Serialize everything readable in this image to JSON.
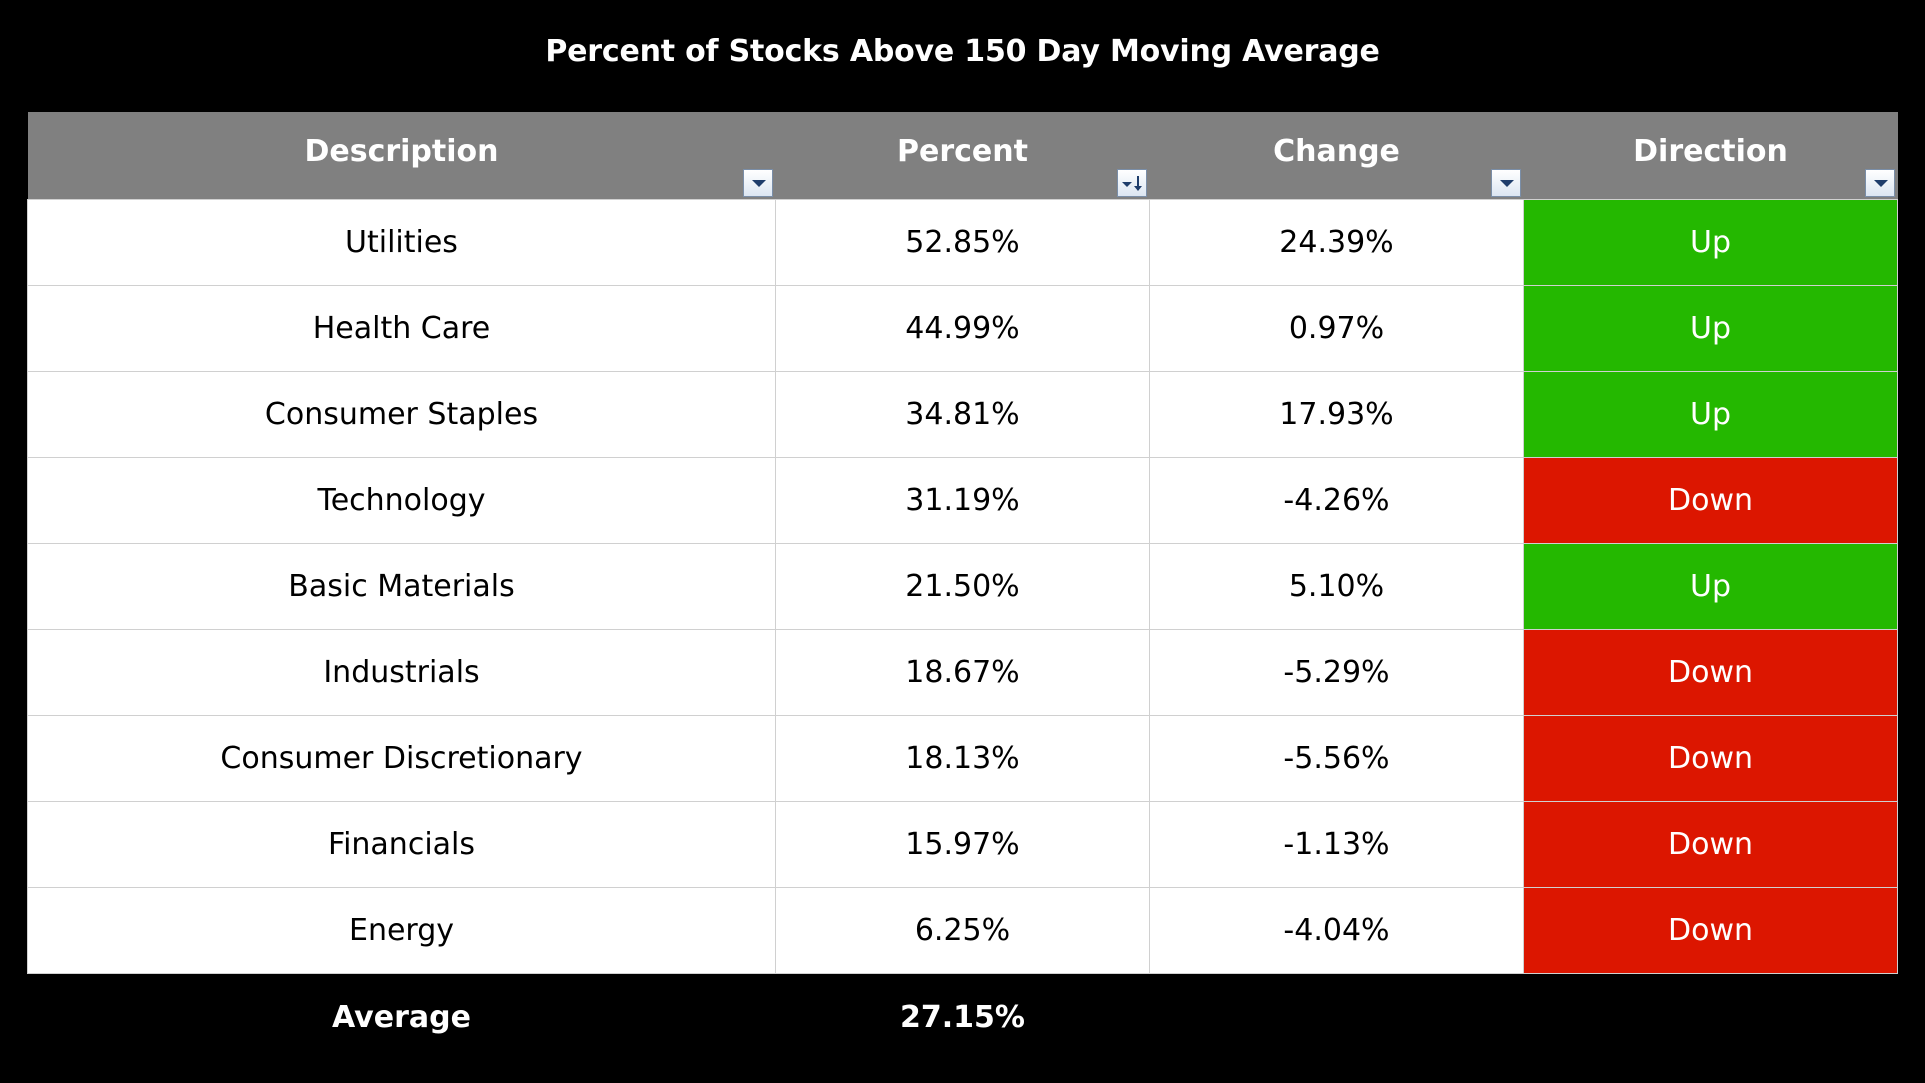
{
  "title": "Percent of Stocks Above 150 Day Moving Average",
  "headers": [
    {
      "label": "Description",
      "filter": "dropdown"
    },
    {
      "label": "Percent",
      "filter": "sorted-descending"
    },
    {
      "label": "Change",
      "filter": "dropdown"
    },
    {
      "label": "Direction",
      "filter": "dropdown"
    }
  ],
  "rows": [
    {
      "description": "Utilities",
      "percent": "52.85%",
      "change": "24.39%",
      "direction": "Up"
    },
    {
      "description": "Health Care",
      "percent": "44.99%",
      "change": "0.97%",
      "direction": "Up"
    },
    {
      "description": "Consumer Staples",
      "percent": "34.81%",
      "change": "17.93%",
      "direction": "Up"
    },
    {
      "description": "Technology",
      "percent": "31.19%",
      "change": "-4.26%",
      "direction": "Down"
    },
    {
      "description": "Basic Materials",
      "percent": "21.50%",
      "change": "5.10%",
      "direction": "Up"
    },
    {
      "description": "Industrials",
      "percent": "18.67%",
      "change": "-5.29%",
      "direction": "Down"
    },
    {
      "description": "Consumer Discretionary",
      "percent": "18.13%",
      "change": "-5.56%",
      "direction": "Down"
    },
    {
      "description": "Financials",
      "percent": "15.97%",
      "change": "-1.13%",
      "direction": "Down"
    },
    {
      "description": "Energy",
      "percent": "6.25%",
      "change": "-4.04%",
      "direction": "Down"
    }
  ],
  "footer": {
    "label": "Average",
    "percent": "27.15%"
  },
  "colors": {
    "background": "#000000",
    "header_fill": "#808080",
    "up_fill": "#24b800",
    "down_fill": "#dc1600"
  }
}
